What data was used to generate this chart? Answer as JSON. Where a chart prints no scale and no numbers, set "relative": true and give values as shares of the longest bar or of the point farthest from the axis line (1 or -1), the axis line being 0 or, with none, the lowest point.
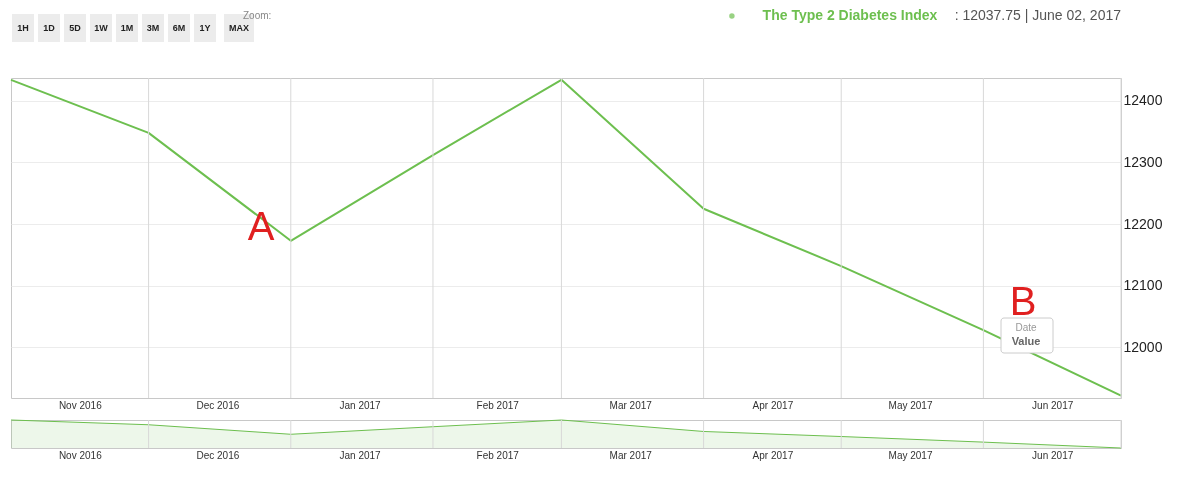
{
  "chart_data": [
    {
      "type": "line",
      "title": "The Type 2 Diabetes Index",
      "subtitle": ": 12037.75  | June 02, 2017",
      "x": [
        "2016-11-01",
        "2016-12-01",
        "2017-01-01",
        "2017-02-01",
        "2017-03-01",
        "2017-04-01",
        "2017-05-01",
        "2017-06-01",
        "2017-07-01"
      ],
      "series": [
        {
          "color": "#6dbf4f",
          "values": [
            12434,
            12348,
            12173,
            12312,
            12434,
            12225,
            12132,
            12028,
            11922
          ]
        }
      ],
      "xlim": [
        "2016-11-01",
        "2017-07-01"
      ],
      "xticks": [
        {
          "value": "2016-11-16",
          "label": "Nov 2016"
        },
        {
          "value": "2016-12-16",
          "label": "Dec 2016"
        },
        {
          "value": "2017-01-16",
          "label": "Jan 2017"
        },
        {
          "value": "2017-02-15",
          "label": "Feb 2017"
        },
        {
          "value": "2017-03-16",
          "label": "Mar 2017"
        },
        {
          "value": "2017-04-16",
          "label": "Apr 2017"
        },
        {
          "value": "2017-05-16",
          "label": "May 2017"
        },
        {
          "value": "2017-06-16",
          "label": "Jun 2017"
        }
      ],
      "ylim": [
        11918,
        12437
      ],
      "yticks": [
        12000,
        12100,
        12200,
        12300,
        12400
      ],
      "grid": "y",
      "marker": "none",
      "line_style": "solid",
      "ref_lines": [
        {
          "axis": "x",
          "value": "2016-12-01",
          "color": "#d8d8d8"
        },
        {
          "axis": "x",
          "value": "2017-01-01",
          "color": "#d8d8d8"
        },
        {
          "axis": "x",
          "value": "2017-02-01",
          "color": "#d8d8d8"
        },
        {
          "axis": "x",
          "value": "2017-03-01",
          "color": "#d8d8d8"
        },
        {
          "axis": "x",
          "value": "2017-04-01",
          "color": "#d8d8d8"
        },
        {
          "axis": "x",
          "value": "2017-05-01",
          "color": "#d8d8d8"
        },
        {
          "axis": "x",
          "value": "2017-06-01",
          "color": "#d8d8d8"
        },
        {
          "axis": "x",
          "value": "2017-07-01",
          "color": "#d8d8d8"
        }
      ],
      "annotations": [
        "1H",
        "1D",
        "5D",
        "1W",
        "1M",
        "3M",
        "6M",
        "1Y",
        "MAX",
        "Zoom:",
        "A",
        "B",
        "Date",
        "Value"
      ]
    },
    {
      "type": "area",
      "relative": true,
      "x": [
        "2016-11-01",
        "2016-12-01",
        "2017-01-01",
        "2017-02-01",
        "2017-03-01",
        "2017-04-01",
        "2017-05-01",
        "2017-06-01",
        "2017-07-01"
      ],
      "series": [
        {
          "color": "#6dbf4f",
          "values": [
            1,
            0.83,
            0.49,
            0.76,
            1,
            0.59,
            0.41,
            0.21,
            0
          ]
        }
      ],
      "xlim": [
        "2016-11-01",
        "2017-07-01"
      ],
      "xticks": [
        {
          "value": "2016-11-16",
          "label": "Nov 2016"
        },
        {
          "value": "2016-12-16",
          "label": "Dec 2016"
        },
        {
          "value": "2017-01-16",
          "label": "Jan 2017"
        },
        {
          "value": "2017-02-15",
          "label": "Feb 2017"
        },
        {
          "value": "2017-03-16",
          "label": "Mar 2017"
        },
        {
          "value": "2017-04-16",
          "label": "Apr 2017"
        },
        {
          "value": "2017-05-16",
          "label": "May 2017"
        },
        {
          "value": "2017-06-16",
          "label": "Jun 2017"
        }
      ],
      "ref_lines": [
        {
          "axis": "x",
          "value": "2016-12-01",
          "color": "#d8d8d8"
        },
        {
          "axis": "x",
          "value": "2017-01-01",
          "color": "#d8d8d8"
        },
        {
          "axis": "x",
          "value": "2017-02-01",
          "color": "#d8d8d8"
        },
        {
          "axis": "x",
          "value": "2017-03-01",
          "color": "#d8d8d8"
        },
        {
          "axis": "x",
          "value": "2017-04-01",
          "color": "#d8d8d8"
        },
        {
          "axis": "x",
          "value": "2017-05-01",
          "color": "#d8d8d8"
        },
        {
          "axis": "x",
          "value": "2017-06-01",
          "color": "#d8d8d8"
        },
        {
          "axis": "x",
          "value": "2017-07-01",
          "color": "#d8d8d8"
        }
      ],
      "tick_labels": "x"
    }
  ]
}
